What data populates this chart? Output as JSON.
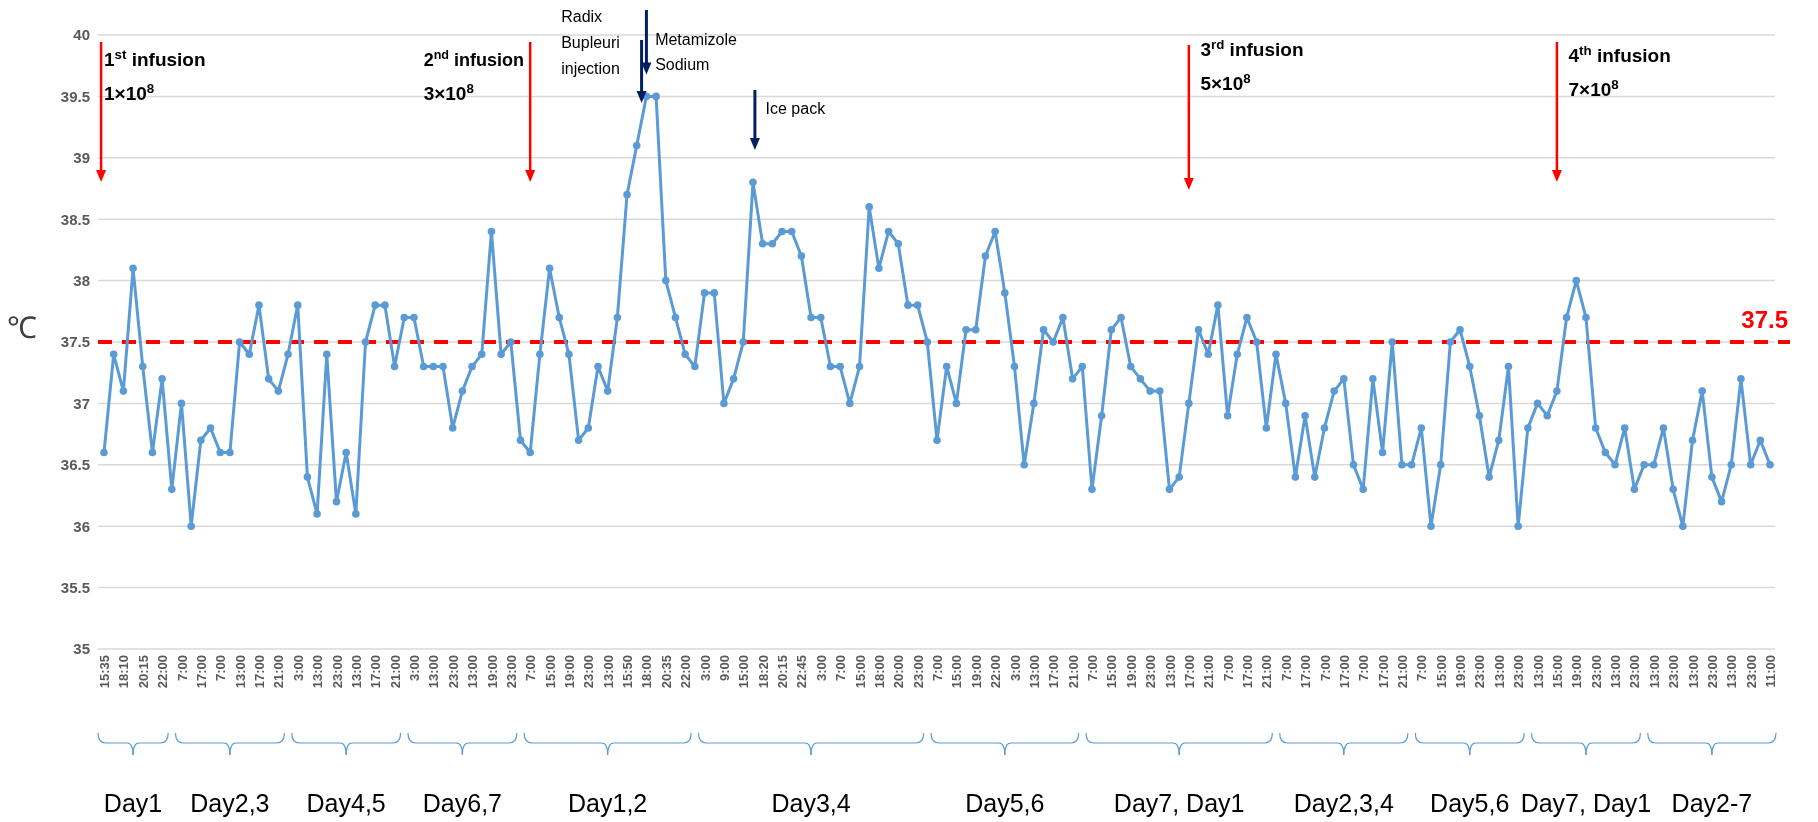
{
  "chart_data": {
    "type": "line",
    "ylabel": "℃",
    "ylim": [
      35,
      40
    ],
    "yticks": [
      35,
      35.5,
      36,
      36.5,
      37,
      37.5,
      38,
      38.5,
      39,
      39.5,
      40
    ],
    "grid": "y",
    "marker": "circle",
    "line_style": "solid",
    "categories": [
      "15:35",
      null,
      "18:10",
      null,
      "20:15",
      null,
      "22:00",
      null,
      "7:00",
      null,
      "17:00",
      null,
      "7:00",
      null,
      "13:00",
      null,
      "17:00",
      null,
      "21:00",
      null,
      "3:00",
      null,
      "13:00",
      null,
      "23:00",
      null,
      "13:00",
      null,
      "17:00",
      null,
      "21:00",
      null,
      "3:00",
      null,
      "13:00",
      null,
      "23:00",
      null,
      "13:00",
      null,
      "19:00",
      null,
      "23:00",
      null,
      "7:00",
      null,
      "15:00",
      null,
      "19:00",
      null,
      "23:00",
      null,
      "13:00",
      null,
      "15:50",
      null,
      "18:00",
      null,
      "20:35",
      null,
      "22:00",
      null,
      "3:00",
      null,
      "9:00",
      null,
      "15:00",
      null,
      "18:20",
      null,
      "20:15",
      null,
      "22:45",
      null,
      "3:00",
      null,
      "7:00",
      null,
      "15:00",
      null,
      "18:00",
      null,
      "20:00",
      null,
      "23:00",
      null,
      "7:00",
      null,
      "15:00",
      null,
      "19:00",
      null,
      "22:00",
      null,
      "3:00",
      null,
      "13:00",
      null,
      "17:00",
      null,
      "21:00",
      null,
      "7:00",
      null,
      "15:00",
      null,
      "19:00",
      null,
      "23:00",
      null,
      "13:00",
      null,
      "17:00",
      null,
      "21:00",
      null,
      "7:00",
      null,
      "17:00",
      null,
      "21:00",
      null,
      "7:00",
      null,
      "17:00",
      null,
      "7:00",
      null,
      "17:00",
      null,
      "7:00",
      null,
      "17:00",
      null,
      "21:00",
      null,
      "7:00",
      null,
      "15:00",
      null,
      "19:00",
      null,
      "23:00",
      null,
      "13:00",
      null,
      "23:00",
      null,
      "13:00",
      null,
      "15:00",
      null,
      "19:00",
      null,
      "23:00",
      null,
      "13:00",
      null,
      "23:00",
      null,
      "13:00",
      null,
      "23:00",
      null,
      "13:00",
      null,
      "23:00",
      null,
      "13:00",
      null,
      "23:00",
      null,
      "11:00"
    ],
    "series": [
      {
        "color": "#5b9bd5",
        "values": [
          36.6,
          37.4,
          37.1,
          38.1,
          37.3,
          36.6,
          37.2,
          36.3,
          37.0,
          36.0,
          36.7,
          36.8,
          36.6,
          36.6,
          37.5,
          37.4,
          37.8,
          37.2,
          37.1,
          37.4,
          37.8,
          36.4,
          36.1,
          37.4,
          36.2,
          36.6,
          36.1,
          37.5,
          37.8,
          37.8,
          37.3,
          37.7,
          37.7,
          37.3,
          37.3,
          37.3,
          36.8,
          37.1,
          37.3,
          37.4,
          38.4,
          37.4,
          37.5,
          36.7,
          36.6,
          37.4,
          38.1,
          37.7,
          37.4,
          36.7,
          36.8,
          37.3,
          37.1,
          37.7,
          38.7,
          39.1,
          39.5,
          39.5,
          38.0,
          37.7,
          37.4,
          37.3,
          37.9,
          37.9,
          37.0,
          37.2,
          37.5,
          38.8,
          38.3,
          38.3,
          38.4,
          38.4,
          38.2,
          37.7,
          37.7,
          37.3,
          37.3,
          37.0,
          37.3,
          38.6,
          38.1,
          38.4,
          38.3,
          37.8,
          37.8,
          37.5,
          36.7,
          37.3,
          37.0,
          37.6,
          37.6,
          38.2,
          38.4,
          37.9,
          37.3,
          36.5,
          37.0,
          37.6,
          37.5,
          37.7,
          37.2,
          37.3,
          36.3,
          36.9,
          37.6,
          37.7,
          37.3,
          37.2,
          37.1,
          37.1,
          36.3,
          36.4,
          37.0,
          37.6,
          37.4,
          37.8,
          36.9,
          37.4,
          37.7,
          37.5,
          36.8,
          37.4,
          37.0,
          36.4,
          36.9,
          36.4,
          36.8,
          37.1,
          37.2,
          36.5,
          36.3,
          37.2,
          36.6,
          37.5,
          36.5,
          36.5,
          36.8,
          36.0,
          36.5,
          37.5,
          37.6,
          37.3,
          36.9,
          36.4,
          36.7,
          37.3,
          36.0,
          36.8,
          37.0,
          36.9,
          37.1,
          37.7,
          38.0,
          37.7,
          36.8,
          36.6,
          36.5,
          36.8,
          36.3,
          36.5,
          36.5,
          36.8,
          36.3,
          36.0,
          36.7,
          37.1,
          36.4,
          36.2,
          36.5,
          37.2,
          36.5,
          36.7,
          36.5
        ]
      }
    ],
    "ref_lines": [
      {
        "axis": "y",
        "value": 37.5,
        "label": "37.5",
        "color": "#ff0000",
        "line_style": "dashed"
      }
    ],
    "annotations": [
      "1$^{st}$ infusion",
      "1×10$^{8}$",
      "2$^{nd}$  infusion",
      "3×10$^{8}$",
      "Radix",
      "Bupleuri",
      "injection",
      {
        "text": "Metamizole",
        "x": "18:00",
        "y": 39.5
      },
      "Sodium",
      "Ice pack",
      "3$^{rd}$ infusion",
      "5×10$^{8}$",
      "4$^{th}$ infusion",
      "7×10$^{8}$",
      "Day1",
      "Day2,3",
      "Day4,5",
      "Day6,7",
      "Day1,2",
      "Day3,4",
      "Day5,6",
      "Day7, Day1",
      "Day2,3,4",
      "Day5,6",
      "Day7, Day1",
      "Day2-7"
    ]
  }
}
